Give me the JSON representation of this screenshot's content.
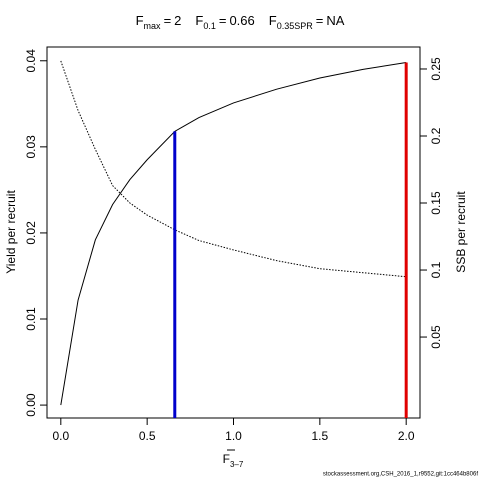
{
  "chart_data": {
    "type": "line",
    "title_items": [
      {
        "symbol": "F",
        "sub": "max",
        "sign": "=",
        "value": 2,
        "line_color": "#e00000"
      },
      {
        "symbol": "F",
        "sub": "0.1",
        "sign": "=",
        "value": 0.66,
        "line_color": "#0000cc"
      },
      {
        "symbol": "F",
        "sub": "0.35SPR",
        "sign": "=",
        "value": "NA"
      }
    ],
    "x_label": {
      "symbol": "F",
      "sub": "3–7"
    },
    "y_label": "Yield per recruit",
    "y2_label": "SSB per recruit",
    "footer": "stockassessment.org,CSH_2016_1,r9552,git:1cc464b806f",
    "x": [
      0,
      0.1,
      0.2,
      0.3,
      0.4,
      0.5,
      0.66,
      0.8,
      1.0,
      1.25,
      1.5,
      1.75,
      2.0
    ],
    "series": [
      {
        "name": "Yield per recruit",
        "color": "#000000",
        "dash": "solid",
        "axis": "y",
        "values": [
          0,
          0.0122,
          0.0192,
          0.0233,
          0.0262,
          0.0285,
          0.0318,
          0.0334,
          0.0351,
          0.0367,
          0.038,
          0.039,
          0.0398
        ]
      },
      {
        "name": "SSB per recruit",
        "color": "#000000",
        "dash": "dotted",
        "axis": "y2",
        "values": [
          0.256,
          0.219,
          0.19,
          0.163,
          0.15,
          0.141,
          0.13,
          0.122,
          0.115,
          0.107,
          0.101,
          0.098,
          0.095
        ]
      }
    ],
    "xlim": [
      -0.08,
      2.08
    ],
    "xticks": [
      {
        "value": 0,
        "label": "0.0"
      },
      0.5,
      {
        "value": 1,
        "label": "1.0"
      },
      1.5,
      {
        "value": 2,
        "label": "2.0"
      }
    ],
    "ylim": [
      -0.0015,
      0.0416
    ],
    "yticks": [
      {
        "value": 0,
        "label": "0.00"
      },
      0.01,
      0.02,
      0.03,
      0.04
    ],
    "y2lim": [
      -0.0104,
      0.2664
    ],
    "y2ticks": [
      0.05,
      0.1,
      0.15,
      0.2,
      0.25
    ]
  }
}
